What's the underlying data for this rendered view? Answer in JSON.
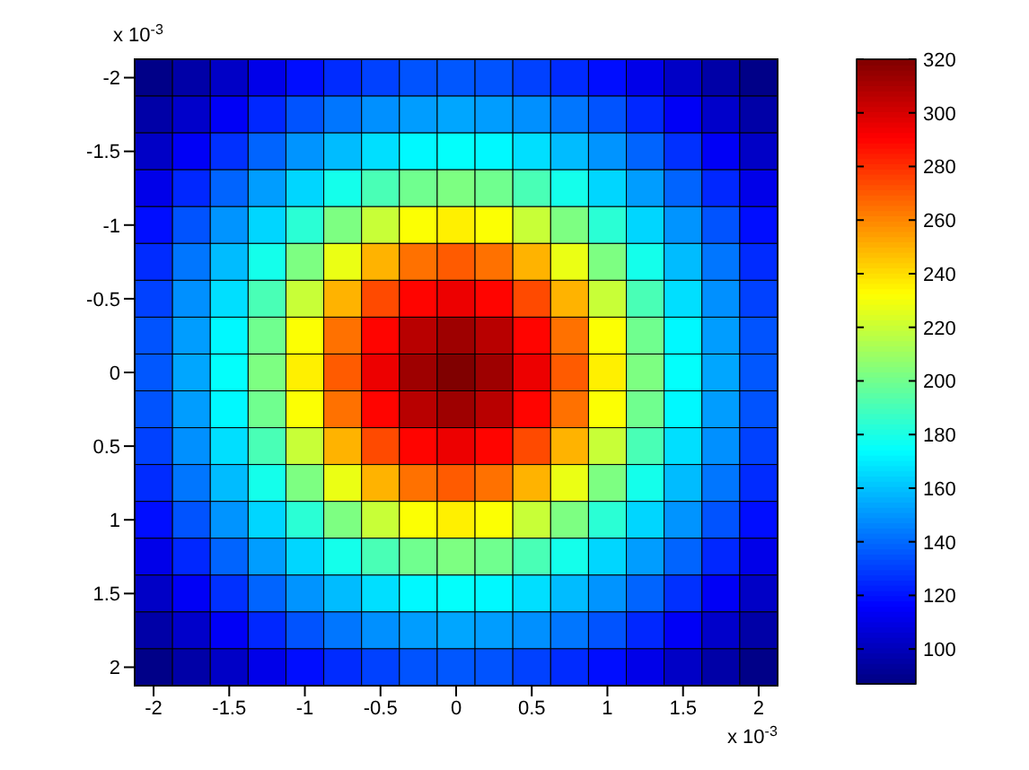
{
  "chart_data": {
    "type": "heatmap",
    "annotations": [
      "x 10$^{-3}$",
      "x 10$^{-3}$"
    ],
    "categories": [
      "-2",
      null,
      "-1.5",
      null,
      "-1",
      null,
      "-0.5",
      null,
      "0",
      null,
      "0.5",
      null,
      "1",
      null,
      "1.5",
      null,
      "2"
    ],
    "y_categories": [
      "-2",
      null,
      "-1.5",
      null,
      "-1",
      null,
      "-0.5",
      null,
      "0",
      null,
      "0.5",
      null,
      "1",
      null,
      "1.5",
      null,
      "2"
    ],
    "clim": [
      87,
      320
    ],
    "cticks": [
      100,
      120,
      140,
      160,
      180,
      200,
      220,
      240,
      260,
      280,
      300,
      320
    ],
    "cells": [
      [
        89,
        96,
        103,
        111,
        119,
        126,
        131,
        135,
        136,
        135,
        131,
        126,
        119,
        111,
        103,
        96,
        89
      ],
      [
        96,
        104,
        114,
        125,
        135,
        143,
        149,
        152,
        154,
        152,
        149,
        143,
        135,
        125,
        114,
        104,
        96
      ],
      [
        103,
        114,
        127,
        139,
        150,
        159,
        167,
        173,
        175,
        173,
        167,
        159,
        150,
        139,
        127,
        114,
        103
      ],
      [
        111,
        125,
        139,
        152,
        165,
        179,
        191,
        200,
        203,
        200,
        191,
        179,
        165,
        152,
        139,
        125,
        111
      ],
      [
        119,
        135,
        150,
        165,
        184,
        203,
        220,
        232,
        236,
        232,
        220,
        203,
        184,
        165,
        150,
        135,
        119
      ],
      [
        126,
        143,
        159,
        179,
        203,
        228,
        250,
        265,
        270,
        265,
        250,
        228,
        203,
        179,
        159,
        143,
        126
      ],
      [
        131,
        149,
        167,
        191,
        220,
        250,
        274,
        290,
        295,
        290,
        274,
        250,
        220,
        191,
        167,
        149,
        131
      ],
      [
        135,
        152,
        173,
        200,
        232,
        265,
        290,
        307,
        313,
        307,
        290,
        265,
        232,
        200,
        173,
        152,
        135
      ],
      [
        136,
        154,
        175,
        203,
        236,
        270,
        295,
        313,
        320,
        313,
        295,
        270,
        236,
        203,
        175,
        154,
        136
      ],
      [
        135,
        152,
        173,
        200,
        232,
        265,
        290,
        307,
        313,
        307,
        290,
        265,
        232,
        200,
        173,
        152,
        135
      ],
      [
        131,
        149,
        167,
        191,
        220,
        250,
        274,
        290,
        295,
        290,
        274,
        250,
        220,
        191,
        167,
        149,
        131
      ],
      [
        126,
        143,
        159,
        179,
        203,
        228,
        250,
        265,
        270,
        265,
        250,
        228,
        203,
        179,
        159,
        143,
        126
      ],
      [
        119,
        135,
        150,
        165,
        184,
        203,
        220,
        232,
        236,
        232,
        220,
        203,
        184,
        165,
        150,
        135,
        119
      ],
      [
        111,
        125,
        139,
        152,
        165,
        179,
        191,
        200,
        203,
        200,
        191,
        179,
        165,
        152,
        139,
        125,
        111
      ],
      [
        103,
        114,
        127,
        139,
        150,
        159,
        167,
        173,
        175,
        173,
        167,
        159,
        150,
        139,
        127,
        114,
        103
      ],
      [
        96,
        104,
        114,
        125,
        135,
        143,
        149,
        152,
        154,
        152,
        149,
        143,
        135,
        125,
        114,
        104,
        96
      ],
      [
        89,
        96,
        103,
        111,
        119,
        126,
        131,
        135,
        136,
        135,
        131,
        126,
        119,
        111,
        103,
        96,
        89
      ]
    ]
  }
}
